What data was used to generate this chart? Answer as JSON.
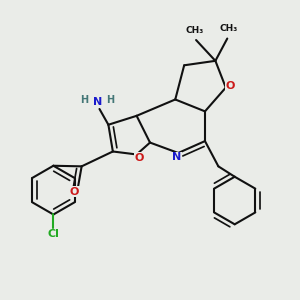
{
  "bg": "#eaece8",
  "bc": "#111111",
  "bw": 1.5,
  "do": 0.07,
  "colors": {
    "N": "#1a1acc",
    "O": "#cc1a1a",
    "Cl": "#22aa22",
    "H": "#447777",
    "C": "#111111"
  },
  "fs": 8.0
}
